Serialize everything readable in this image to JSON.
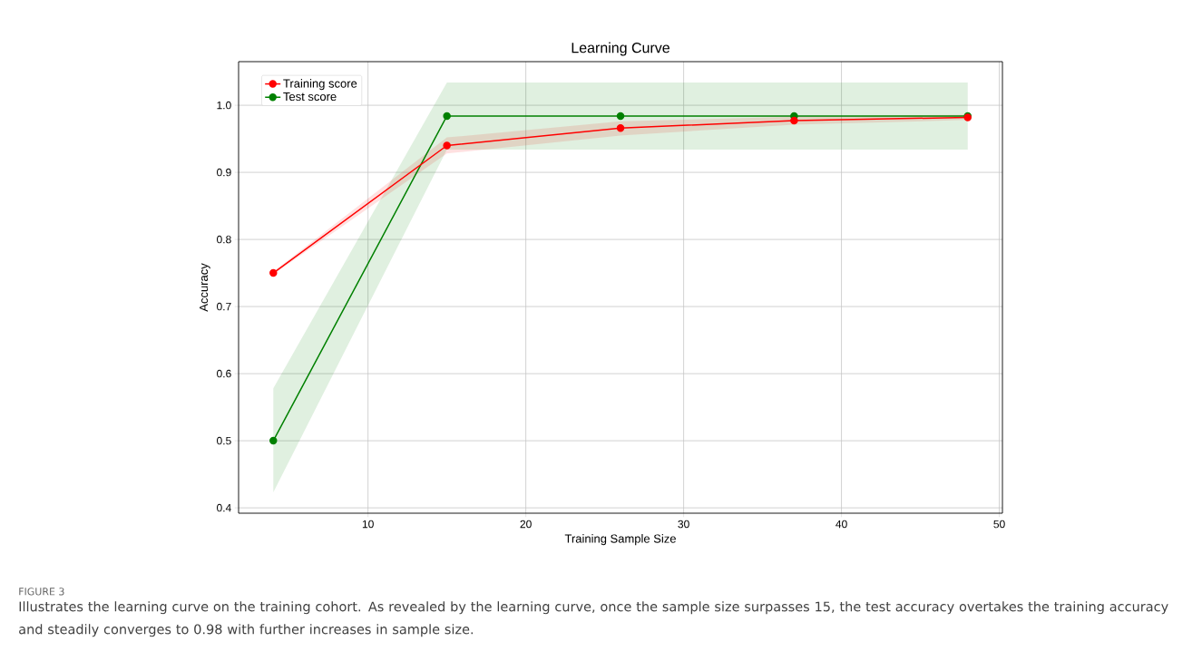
{
  "chart_data": {
    "type": "line",
    "title": "Learning Curve",
    "xlabel": "Training Sample Size",
    "ylabel": "Accuracy",
    "x": [
      4,
      15,
      26,
      37,
      48
    ],
    "series": [
      {
        "name": "Training score",
        "color": "#ff0000",
        "values": [
          0.75,
          0.94,
          0.966,
          0.977,
          0.982
        ],
        "lower": [
          0.748,
          0.928,
          0.955,
          0.971,
          0.978
        ],
        "upper": [
          0.752,
          0.952,
          0.976,
          0.983,
          0.986
        ]
      },
      {
        "name": "Test score",
        "color": "#008000",
        "values": [
          0.5,
          0.984,
          0.984,
          0.984,
          0.984
        ],
        "lower": [
          0.423,
          0.934,
          0.934,
          0.934,
          0.934
        ],
        "upper": [
          0.578,
          1.034,
          1.034,
          1.034,
          1.034
        ]
      }
    ],
    "xlim": [
      1.8,
      50.2
    ],
    "ylim": [
      0.392,
      1.065
    ],
    "xticks": [
      10,
      20,
      30,
      40,
      50
    ],
    "yticks": [
      0.4,
      0.5,
      0.6,
      0.7,
      0.8,
      0.9,
      {
        "value": 1.0,
        "label": "1.0"
      }
    ],
    "grid": true,
    "legend": "top left",
    "marker": "circle",
    "line_style": "solid",
    "annotations": [
      "FIGURE 3",
      "Illustrates the learning curve on the training cohort. As revealed by the learning curve, once the sample size surpasses 15, the test accuracy overtakes the training accuracy and steadily converges to 0.98 with further increases in sample size."
    ]
  }
}
